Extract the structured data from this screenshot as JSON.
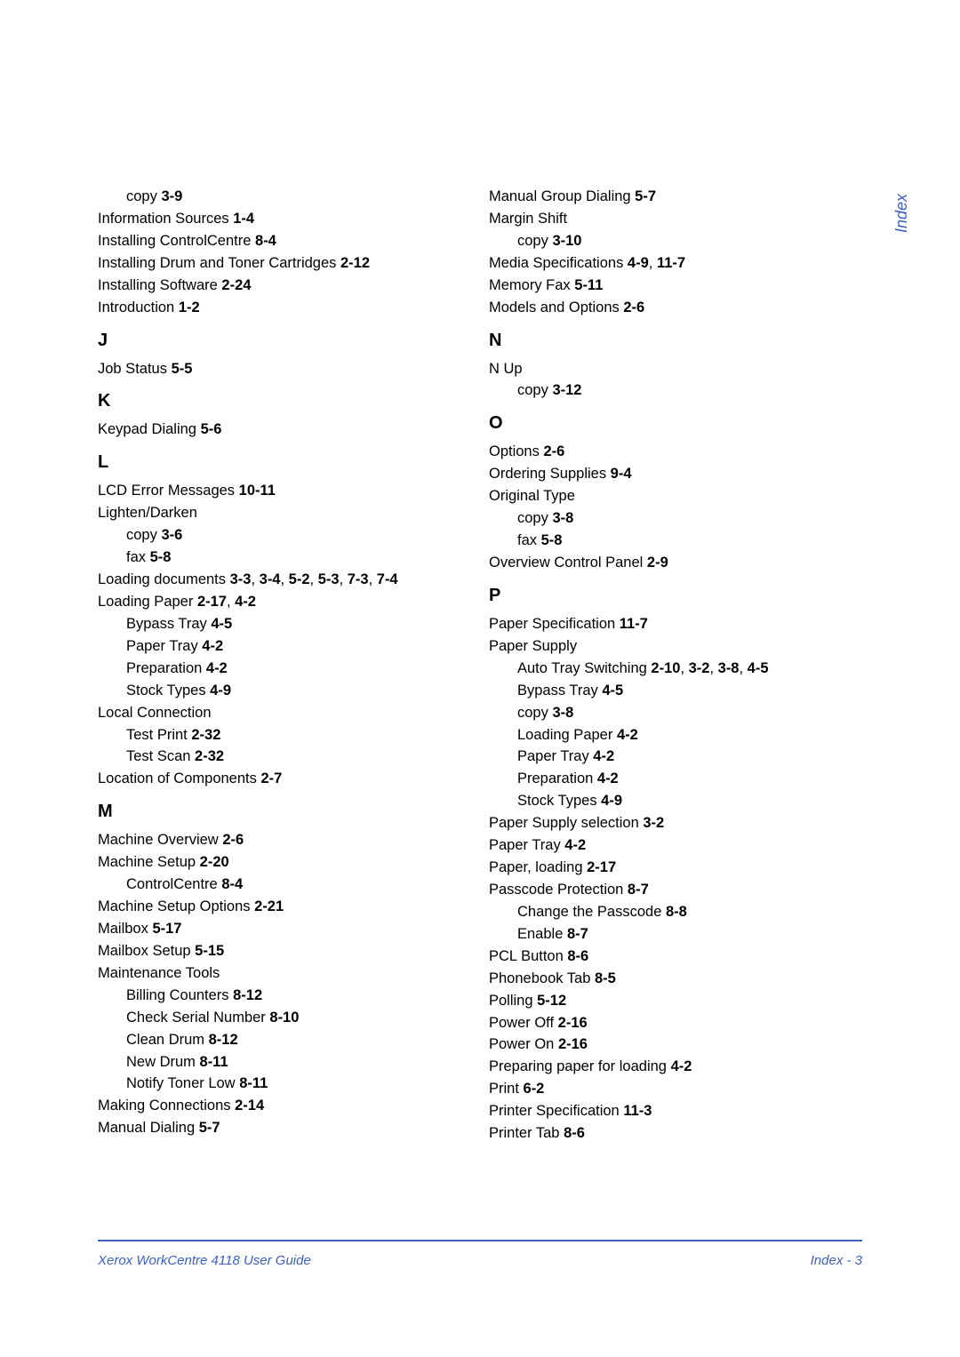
{
  "colors": {
    "accent": "#3b5fc4",
    "text": "#000000",
    "bg": "#ffffff"
  },
  "side_tab": "Index",
  "footer": {
    "left": "Xerox WorkCentre 4118 User Guide",
    "right": "Index - 3"
  },
  "left_col": [
    {
      "type": "sub",
      "label": "copy",
      "ref": "3-9"
    },
    {
      "type": "entry",
      "label": "Information Sources",
      "ref": "1-4"
    },
    {
      "type": "entry",
      "label": "Installing ControlCentre",
      "ref": "8-4"
    },
    {
      "type": "entry",
      "label": "Installing Drum and Toner Cartridges",
      "ref": "2-12"
    },
    {
      "type": "entry",
      "label": "Installing Software",
      "ref": "2-24"
    },
    {
      "type": "entry",
      "label": "Introduction",
      "ref": "1-2"
    },
    {
      "type": "letter",
      "label": "J"
    },
    {
      "type": "entry",
      "label": "Job Status",
      "ref": "5-5"
    },
    {
      "type": "letter",
      "label": "K"
    },
    {
      "type": "entry",
      "label": "Keypad Dialing",
      "ref": "5-6"
    },
    {
      "type": "letter",
      "label": "L"
    },
    {
      "type": "entry",
      "label": "LCD Error Messages",
      "ref": "10-11"
    },
    {
      "type": "entry",
      "label": "Lighten/Darken",
      "ref": ""
    },
    {
      "type": "sub",
      "label": "copy",
      "ref": "3-6"
    },
    {
      "type": "sub",
      "label": "fax",
      "ref": "5-8"
    },
    {
      "type": "entry",
      "label": "Loading documents",
      "ref": "3-3, 3-4, 5-2, 5-3, 7-3, 7-4"
    },
    {
      "type": "entry",
      "label": "Loading Paper",
      "ref": "2-17, 4-2"
    },
    {
      "type": "sub",
      "label": "Bypass Tray",
      "ref": "4-5"
    },
    {
      "type": "sub",
      "label": "Paper Tray",
      "ref": "4-2"
    },
    {
      "type": "sub",
      "label": "Preparation",
      "ref": "4-2"
    },
    {
      "type": "sub",
      "label": "Stock Types",
      "ref": "4-9"
    },
    {
      "type": "entry",
      "label": "Local Connection",
      "ref": ""
    },
    {
      "type": "sub",
      "label": "Test Print",
      "ref": "2-32"
    },
    {
      "type": "sub",
      "label": "Test Scan",
      "ref": "2-32"
    },
    {
      "type": "entry",
      "label": "Location of Components",
      "ref": "2-7"
    },
    {
      "type": "letter",
      "label": "M"
    },
    {
      "type": "entry",
      "label": "Machine Overview",
      "ref": "2-6"
    },
    {
      "type": "entry",
      "label": "Machine Setup",
      "ref": "2-20"
    },
    {
      "type": "sub",
      "label": "ControlCentre",
      "ref": "8-4"
    },
    {
      "type": "entry",
      "label": "Machine Setup Options",
      "ref": "2-21"
    },
    {
      "type": "entry",
      "label": "Mailbox",
      "ref": "5-17"
    },
    {
      "type": "entry",
      "label": "Mailbox Setup",
      "ref": "5-15"
    },
    {
      "type": "entry",
      "label": "Maintenance Tools",
      "ref": ""
    },
    {
      "type": "sub",
      "label": "Billing Counters",
      "ref": "8-12"
    },
    {
      "type": "sub",
      "label": "Check Serial Number",
      "ref": "8-10"
    },
    {
      "type": "sub",
      "label": "Clean Drum",
      "ref": "8-12"
    },
    {
      "type": "sub",
      "label": "New Drum",
      "ref": "8-11"
    },
    {
      "type": "sub",
      "label": "Notify Toner Low",
      "ref": "8-11"
    },
    {
      "type": "entry",
      "label": "Making Connections",
      "ref": "2-14"
    },
    {
      "type": "entry",
      "label": "Manual Dialing",
      "ref": "5-7"
    }
  ],
  "right_col": [
    {
      "type": "entry",
      "label": "Manual Group Dialing",
      "ref": "5-7"
    },
    {
      "type": "entry",
      "label": "Margin Shift",
      "ref": ""
    },
    {
      "type": "sub",
      "label": "copy",
      "ref": "3-10"
    },
    {
      "type": "entry",
      "label": "Media Specifications",
      "ref": "4-9, 11-7"
    },
    {
      "type": "entry",
      "label": "Memory Fax",
      "ref": "5-11"
    },
    {
      "type": "entry",
      "label": "Models and Options",
      "ref": "2-6"
    },
    {
      "type": "letter",
      "label": "N"
    },
    {
      "type": "entry",
      "label": "N Up",
      "ref": ""
    },
    {
      "type": "sub",
      "label": "copy",
      "ref": "3-12"
    },
    {
      "type": "letter",
      "label": "O"
    },
    {
      "type": "entry",
      "label": "Options",
      "ref": "2-6"
    },
    {
      "type": "entry",
      "label": "Ordering Supplies",
      "ref": "9-4"
    },
    {
      "type": "entry",
      "label": "Original Type",
      "ref": ""
    },
    {
      "type": "sub",
      "label": "copy",
      "ref": "3-8"
    },
    {
      "type": "sub",
      "label": "fax",
      "ref": "5-8"
    },
    {
      "type": "entry",
      "label": "Overview Control Panel",
      "ref": "2-9"
    },
    {
      "type": "letter",
      "label": "P"
    },
    {
      "type": "entry",
      "label": "Paper Specification",
      "ref": "11-7"
    },
    {
      "type": "entry",
      "label": "Paper Supply",
      "ref": ""
    },
    {
      "type": "sub",
      "label": "Auto Tray Switching",
      "ref": "2-10, 3-2, 3-8, 4-5"
    },
    {
      "type": "sub",
      "label": "Bypass Tray",
      "ref": "4-5"
    },
    {
      "type": "sub",
      "label": "copy",
      "ref": "3-8"
    },
    {
      "type": "sub",
      "label": "Loading Paper",
      "ref": "4-2"
    },
    {
      "type": "sub",
      "label": "Paper Tray",
      "ref": "4-2"
    },
    {
      "type": "sub",
      "label": "Preparation",
      "ref": "4-2"
    },
    {
      "type": "sub",
      "label": "Stock Types",
      "ref": "4-9"
    },
    {
      "type": "entry",
      "label": "Paper Supply selection",
      "ref": "3-2"
    },
    {
      "type": "entry",
      "label": "Paper Tray",
      "ref": "4-2"
    },
    {
      "type": "entry",
      "label": "Paper, loading",
      "ref": "2-17"
    },
    {
      "type": "entry",
      "label": "Passcode Protection",
      "ref": "8-7"
    },
    {
      "type": "sub",
      "label": "Change the Passcode",
      "ref": "8-8"
    },
    {
      "type": "sub",
      "label": "Enable",
      "ref": "8-7"
    },
    {
      "type": "entry",
      "label": "PCL Button",
      "ref": "8-6"
    },
    {
      "type": "entry",
      "label": "Phonebook Tab",
      "ref": "8-5"
    },
    {
      "type": "entry",
      "label": "Polling",
      "ref": "5-12"
    },
    {
      "type": "entry",
      "label": "Power Off",
      "ref": "2-16"
    },
    {
      "type": "entry",
      "label": "Power On",
      "ref": "2-16"
    },
    {
      "type": "entry",
      "label": "Preparing paper for loading",
      "ref": "4-2"
    },
    {
      "type": "entry",
      "label": "Print",
      "ref": "6-2"
    },
    {
      "type": "entry",
      "label": "Printer Specification",
      "ref": "11-3"
    },
    {
      "type": "entry",
      "label": "Printer Tab",
      "ref": "8-6"
    }
  ]
}
